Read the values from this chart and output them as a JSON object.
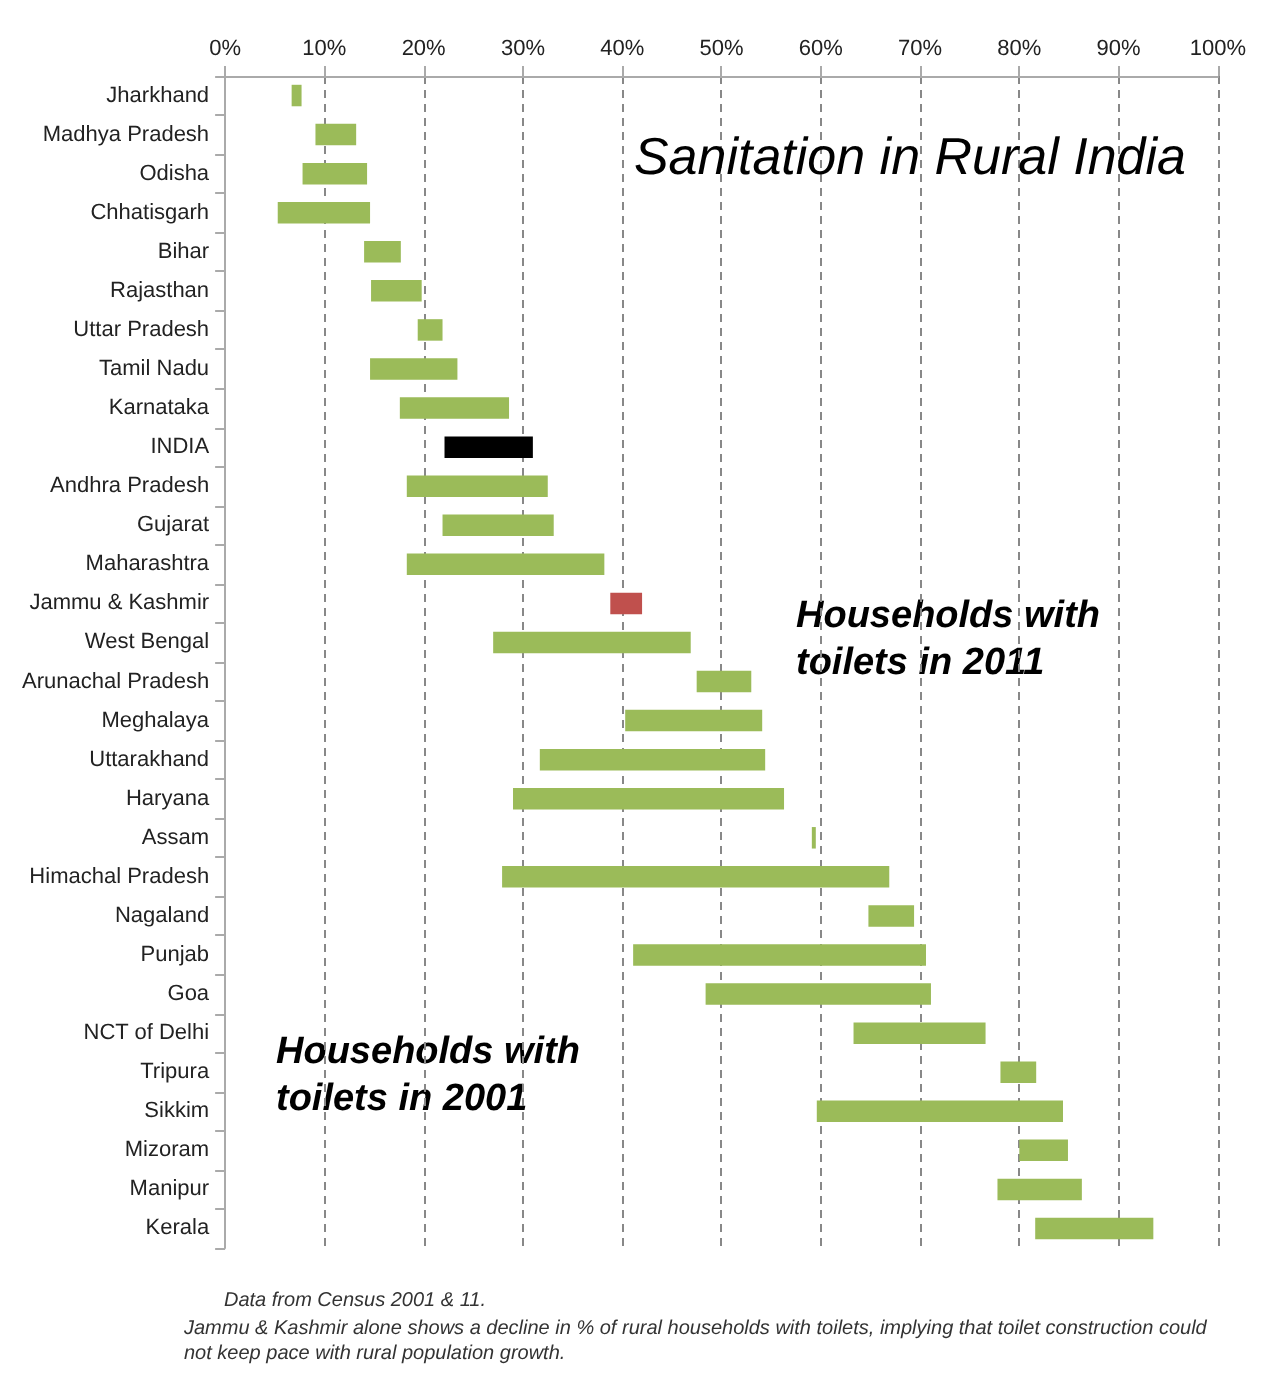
{
  "chart_data": {
    "type": "bar",
    "orientation": "horizontal",
    "title": "Sanitation in Rural India",
    "categories": [
      "Jharkhand",
      "Madhya Pradesh",
      "Odisha",
      "Chhatisgarh",
      "Bihar",
      "Rajasthan",
      "Uttar Pradesh",
      "Tamil Nadu",
      "Karnataka",
      "INDIA",
      "Andhra Pradesh",
      "Gujarat",
      "Maharashtra",
      "Jammu & Kashmir",
      "West Bengal",
      "Arunachal Pradesh",
      "Meghalaya",
      "Uttarakhand",
      "Haryana",
      "Assam",
      "Himachal Pradesh",
      "Nagaland",
      "Punjab",
      "Goa",
      "NCT of Delhi",
      "Tripura",
      "Sikkim",
      "Mizoram",
      "Manipur",
      "Kerala"
    ],
    "base": [
      6.7,
      9.1,
      7.8,
      5.3,
      14.0,
      14.7,
      19.4,
      14.6,
      17.6,
      22.1,
      18.3,
      21.9,
      18.3,
      38.8,
      27.0,
      47.5,
      40.3,
      31.7,
      29.0,
      59.1,
      27.9,
      64.8,
      41.1,
      48.4,
      63.3,
      78.1,
      59.6,
      80.0,
      77.8,
      81.6
    ],
    "values": [
      1.0,
      4.1,
      6.5,
      9.3,
      3.7,
      5.1,
      2.5,
      8.8,
      11.0,
      8.9,
      14.2,
      11.2,
      19.9,
      3.2,
      19.9,
      5.5,
      13.8,
      22.7,
      27.3,
      0.4,
      39.0,
      4.6,
      29.5,
      22.7,
      13.3,
      3.6,
      24.8,
      4.9,
      8.5,
      11.9
    ],
    "colors": [
      "#9bbb59",
      "#9bbb59",
      "#9bbb59",
      "#9bbb59",
      "#9bbb59",
      "#9bbb59",
      "#9bbb59",
      "#9bbb59",
      "#9bbb59",
      "#000000",
      "#9bbb59",
      "#9bbb59",
      "#9bbb59",
      "#c0504d",
      "#9bbb59",
      "#9bbb59",
      "#9bbb59",
      "#9bbb59",
      "#9bbb59",
      "#9bbb59",
      "#9bbb59",
      "#9bbb59",
      "#9bbb59",
      "#9bbb59",
      "#9bbb59",
      "#9bbb59",
      "#9bbb59",
      "#9bbb59",
      "#9bbb59",
      "#9bbb59"
    ],
    "xlim": [
      0,
      100
    ],
    "xticks": [
      {
        "value": 0,
        "label": "0%"
      },
      {
        "value": 10,
        "label": "10%"
      },
      {
        "value": 20,
        "label": "20%"
      },
      {
        "value": 30,
        "label": "30%"
      },
      {
        "value": 40,
        "label": "40%"
      },
      {
        "value": 50,
        "label": "50%"
      },
      {
        "value": 60,
        "label": "60%"
      },
      {
        "value": 70,
        "label": "70%"
      },
      {
        "value": 80,
        "label": "80%"
      },
      {
        "value": 90,
        "label": "90%"
      },
      {
        "value": 100,
        "label": "100%"
      }
    ],
    "grid": "x",
    "annotations": [
      "Households with toilets in 2011",
      "Households with toilets in 2001",
      "Data from Census 2001 & 11.",
      "Jammu & Kashmir alone shows a decline in % of rural households with toilets, implying that toilet construction could not keep pace with rural population growth."
    ]
  }
}
